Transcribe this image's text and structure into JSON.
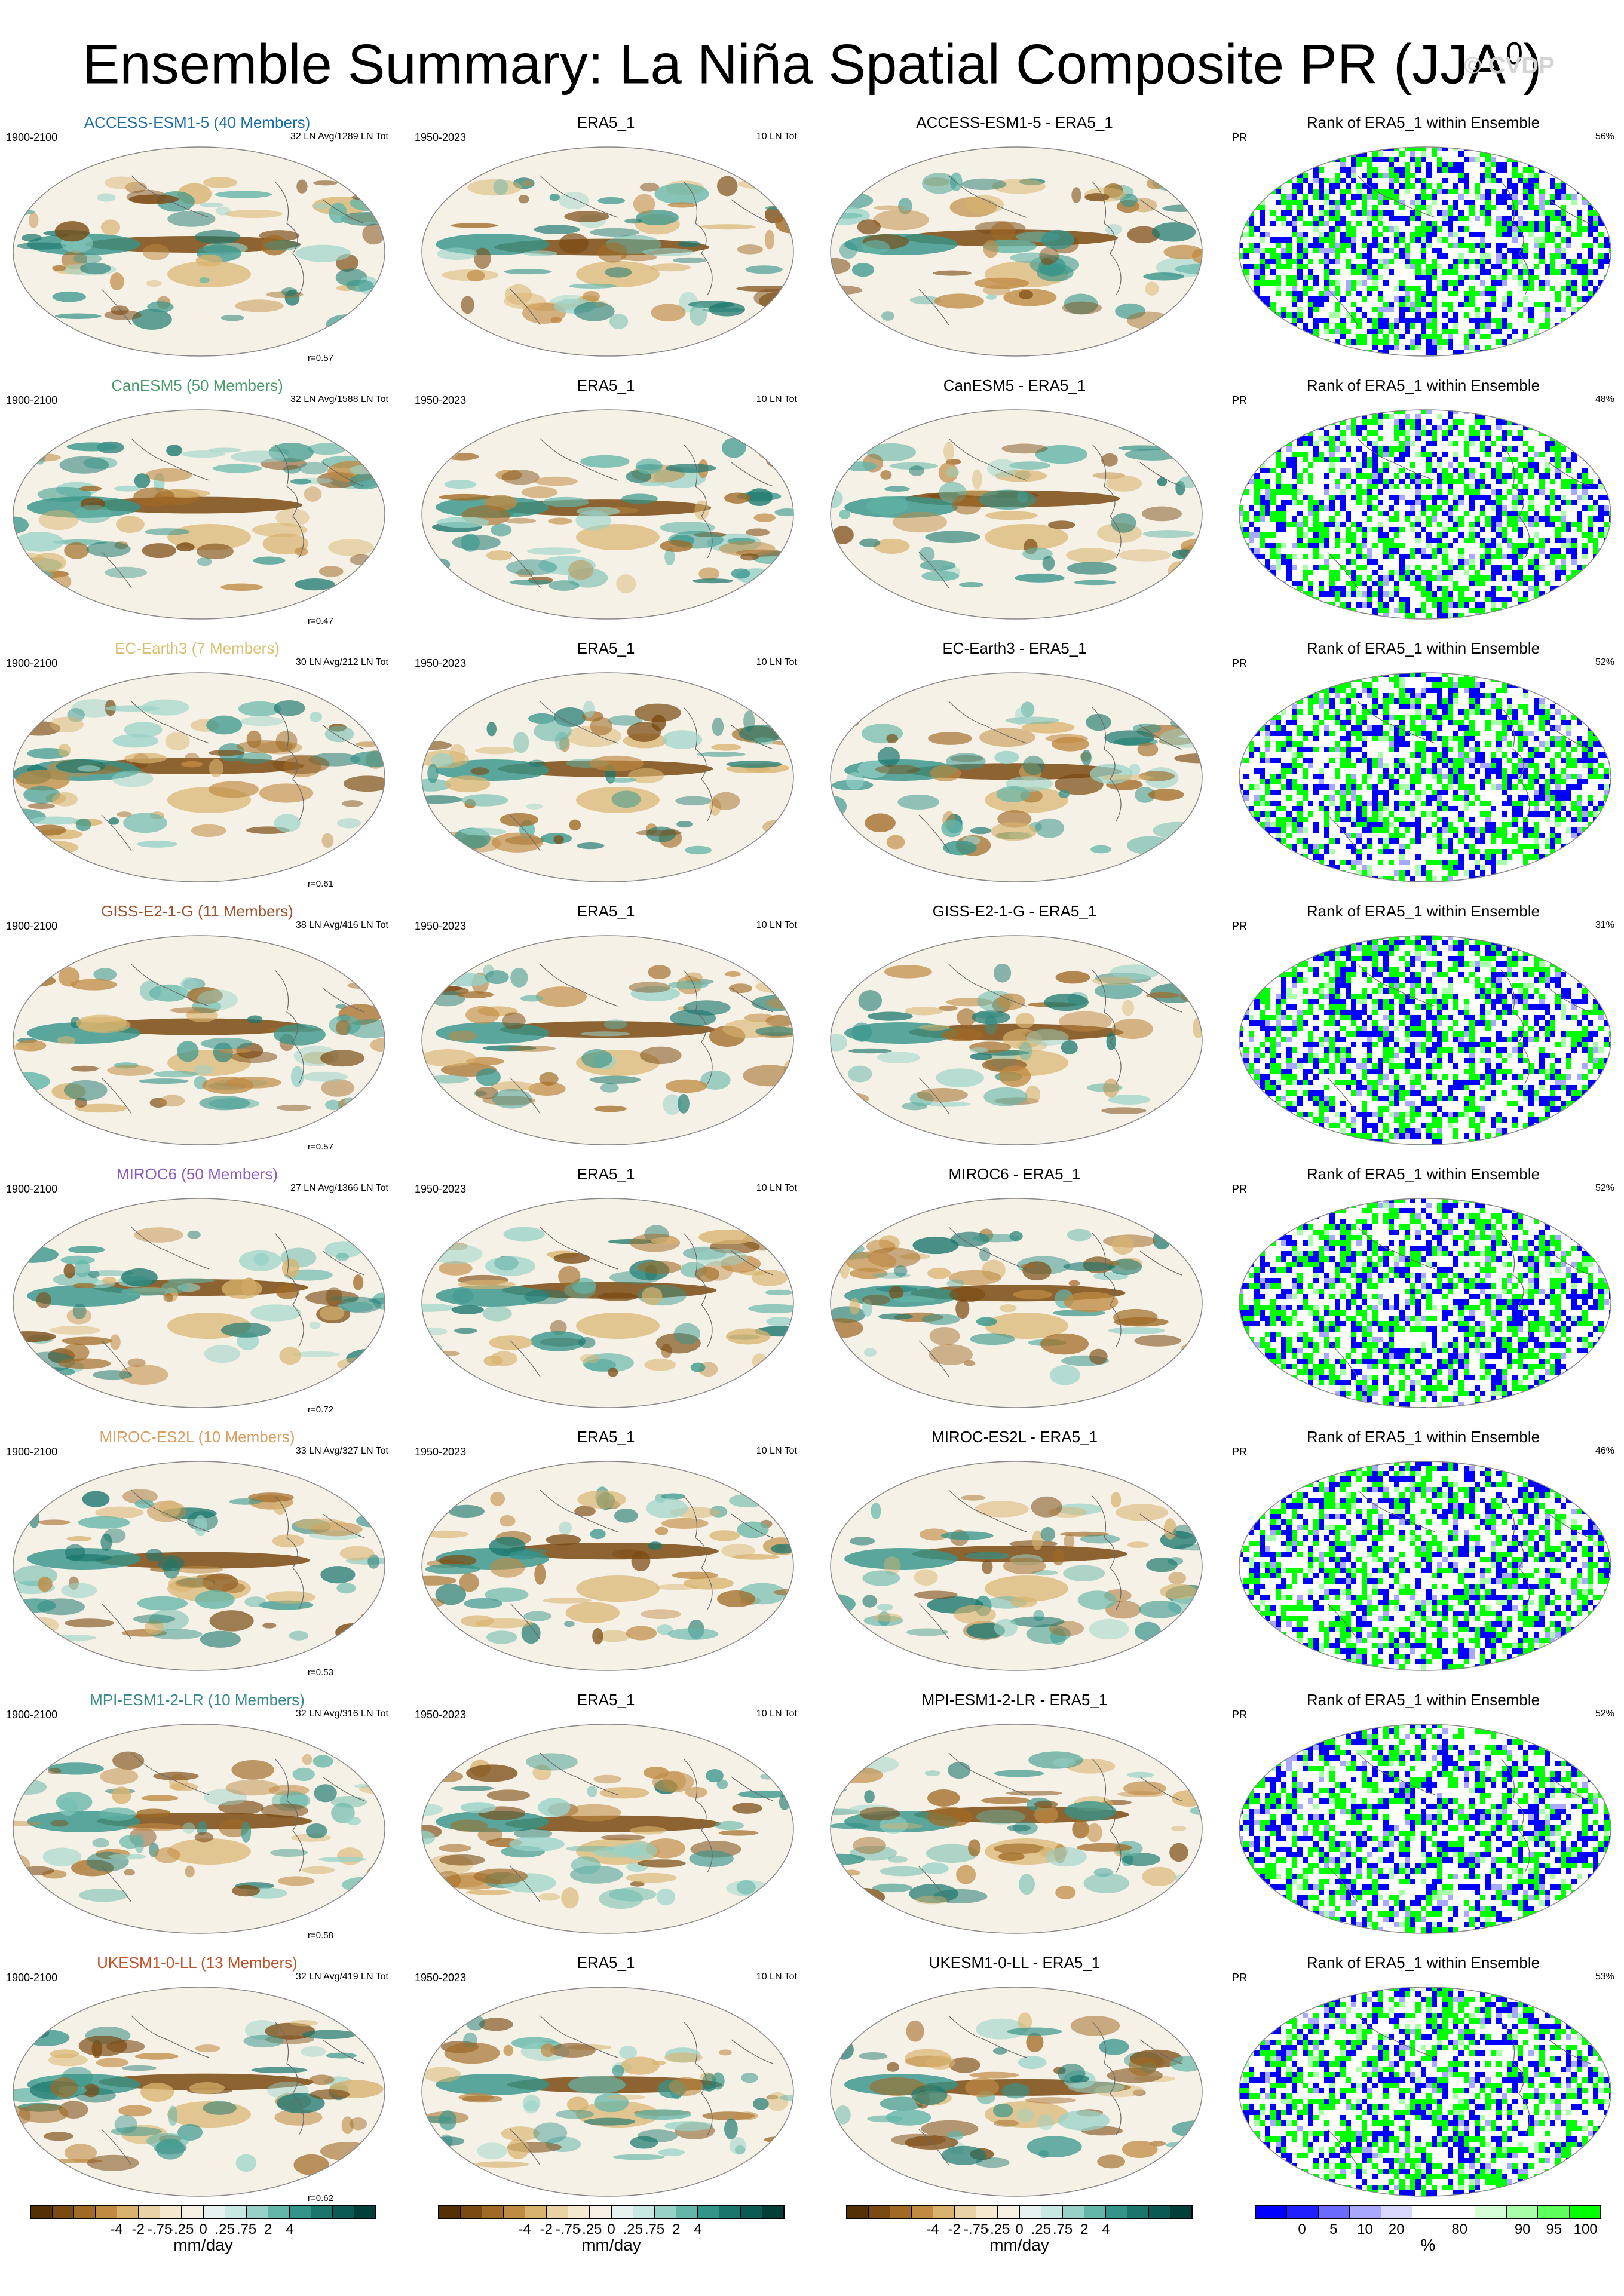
{
  "title_main": "Ensemble Summary: La Niña Spatial Composite PR (JJA",
  "title_sup": "0",
  "title_end": ")",
  "watermark": "© CVDP",
  "rows": [
    {
      "model_title": "ACCESS-ESM1-5 (40 Members)",
      "model_color": "#1b6ea5",
      "model_period": "1900-2100",
      "model_stats": "32 LN Avg/1289 LN Tot",
      "corr": "r=0.57",
      "obs_title": "ERA5_1",
      "obs_period": "1950-2023",
      "obs_stats": "10 LN Tot",
      "diff_title": "ACCESS-ESM1-5 - ERA5_1",
      "rank_title": "Rank of ERA5_1 within Ensemble",
      "rank_var": "PR",
      "rank_pct": "56%"
    },
    {
      "model_title": "CanESM5 (50 Members)",
      "model_color": "#4a9a6a",
      "model_period": "1900-2100",
      "model_stats": "32 LN Avg/1588 LN Tot",
      "corr": "r=0.47",
      "obs_title": "ERA5_1",
      "obs_period": "1950-2023",
      "obs_stats": "10 LN Tot",
      "diff_title": "CanESM5 - ERA5_1",
      "rank_title": "Rank of ERA5_1 within Ensemble",
      "rank_var": "PR",
      "rank_pct": "48%"
    },
    {
      "model_title": "EC-Earth3 (7 Members)",
      "model_color": "#d8bf72",
      "model_period": "1900-2100",
      "model_stats": "30 LN Avg/212 LN Tot",
      "corr": "r=0.61",
      "obs_title": "ERA5_1",
      "obs_period": "1950-2023",
      "obs_stats": "10 LN Tot",
      "diff_title": "EC-Earth3 - ERA5_1",
      "rank_title": "Rank of ERA5_1 within Ensemble",
      "rank_var": "PR",
      "rank_pct": "52%"
    },
    {
      "model_title": "GISS-E2-1-G (11 Members)",
      "model_color": "#a0522d",
      "model_period": "1900-2100",
      "model_stats": "38 LN Avg/416 LN Tot",
      "corr": "r=0.57",
      "obs_title": "ERA5_1",
      "obs_period": "1950-2023",
      "obs_stats": "10 LN Tot",
      "diff_title": "GISS-E2-1-G - ERA5_1",
      "rank_title": "Rank of ERA5_1 within Ensemble",
      "rank_var": "PR",
      "rank_pct": "31%"
    },
    {
      "model_title": "MIROC6 (50 Members)",
      "model_color": "#8a5bc4",
      "model_period": "1900-2100",
      "model_stats": "27 LN Avg/1366 LN Tot",
      "corr": "r=0.72",
      "obs_title": "ERA5_1",
      "obs_period": "1950-2023",
      "obs_stats": "10 LN Tot",
      "diff_title": "MIROC6 - ERA5_1",
      "rank_title": "Rank of ERA5_1 within Ensemble",
      "rank_var": "PR",
      "rank_pct": "52%"
    },
    {
      "model_title": "MIROC-ES2L (10 Members)",
      "model_color": "#d9a066",
      "model_period": "1900-2100",
      "model_stats": "33 LN Avg/327 LN Tot",
      "corr": "r=0.53",
      "obs_title": "ERA5_1",
      "obs_period": "1950-2023",
      "obs_stats": "10 LN Tot",
      "diff_title": "MIROC-ES2L - ERA5_1",
      "rank_title": "Rank of ERA5_1 within Ensemble",
      "rank_var": "PR",
      "rank_pct": "46%"
    },
    {
      "model_title": "MPI-ESM1-2-LR (10 Members)",
      "model_color": "#3a8a8a",
      "model_period": "1900-2100",
      "model_stats": "32 LN Avg/316 LN Tot",
      "corr": "r=0.58",
      "obs_title": "ERA5_1",
      "obs_period": "1950-2023",
      "obs_stats": "10 LN Tot",
      "diff_title": "MPI-ESM1-2-LR - ERA5_1",
      "rank_title": "Rank of ERA5_1 within Ensemble",
      "rank_var": "PR",
      "rank_pct": "52%"
    },
    {
      "model_title": "UKESM1-0-LL (13 Members)",
      "model_color": "#c0502a",
      "model_period": "1900-2100",
      "model_stats": "32 LN Avg/419 LN Tot",
      "corr": "r=0.62",
      "obs_title": "ERA5_1",
      "obs_period": "1950-2023",
      "obs_stats": "10 LN Tot",
      "diff_title": "UKESM1-0-LL - ERA5_1",
      "rank_title": "Rank of ERA5_1 within Ensemble",
      "rank_var": "PR",
      "rank_pct": "53%"
    }
  ],
  "colorbars": {
    "pr": {
      "colors": [
        "#543005",
        "#7a4a12",
        "#a06a25",
        "#bf8a42",
        "#d8b36e",
        "#e9d3a4",
        "#f4e8cf",
        "#f6f0e3",
        "#e6f2f0",
        "#c7e8e3",
        "#97d2c8",
        "#62b5a8",
        "#35948a",
        "#1a766d",
        "#0b5b54",
        "#033f39"
      ],
      "ticks": [
        "-4",
        "-2",
        "-.75",
        "-.25",
        "0",
        ".25",
        ".75",
        "2",
        "4"
      ],
      "unit": "mm/day"
    },
    "rank": {
      "colors": [
        "#0000ff",
        "#2020ff",
        "#6a6aff",
        "#a8a8ff",
        "#d8d8ff",
        "#ffffff",
        "#ffffff",
        "#d6ffd6",
        "#a8ffa8",
        "#5cff5c",
        "#00ff00"
      ],
      "ticks": [
        "0",
        "5",
        "10",
        "20",
        "80",
        "90",
        "95",
        "100"
      ],
      "unit": "%"
    }
  }
}
